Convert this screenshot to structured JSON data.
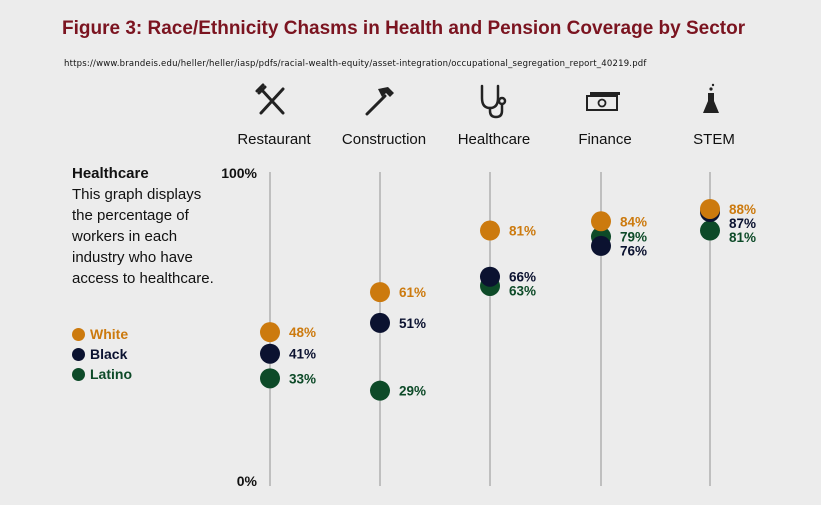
{
  "header": {
    "title": "Figure 3: Race/Ethnicity Chasms in Health and Pension Coverage by Sector",
    "source": "https://www.brandeis.edu/heller/heller/iasp/pdfs/racial-wealth-equity/asset-integration/occupational_segregation_report_40219.pdf"
  },
  "description": {
    "heading": "Healthcare",
    "body": "This graph displays the percentage of workers in each industry who have access to healthcare."
  },
  "legend": [
    {
      "label": "White",
      "color": "#cc7a0e"
    },
    {
      "label": "Black",
      "color": "#0b1230"
    },
    {
      "label": "Latino",
      "color": "#0d4a28"
    }
  ],
  "icons": [
    "fork-knife-icon",
    "hammer-icon",
    "stethoscope-icon",
    "money-icon",
    "flask-icon"
  ],
  "chart_data": {
    "type": "scatter",
    "categories": [
      "Restaurant",
      "Construction",
      "Healthcare",
      "Finance",
      "STEM"
    ],
    "series": [
      {
        "name": "White",
        "values": [
          48,
          61,
          81,
          84,
          88
        ],
        "labels": [
          "48%",
          "61%",
          "81%",
          "84%",
          "88%"
        ],
        "color": "#cc7a0e"
      },
      {
        "name": "Black",
        "values": [
          41,
          51,
          66,
          76,
          87
        ],
        "labels": [
          "41%",
          "51%",
          "66%",
          "76%",
          "87%"
        ],
        "color": "#0b1230"
      },
      {
        "name": "Latino",
        "values": [
          33,
          29,
          63,
          79,
          81
        ],
        "labels": [
          "33%",
          "29%",
          "63%",
          "79%",
          "81%"
        ],
        "color": "#0d4a28"
      }
    ],
    "ylim": [
      0,
      100
    ],
    "y_tick_labels": [
      "100%",
      "0%"
    ],
    "grid": "vertical category lines",
    "legend_position": "left"
  }
}
